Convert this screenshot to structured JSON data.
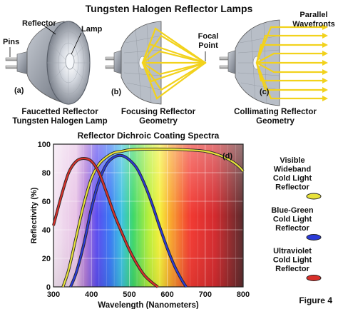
{
  "title": "Tungsten Halogen Reflector Lamps",
  "panels": {
    "a": {
      "letter": "(a)",
      "caption_line1": "Faucetted Reflector",
      "caption_line2": "Tungsten Halogen Lamp",
      "labels": {
        "reflector": "Reflector",
        "lamp": "Lamp",
        "pins": "Pins"
      }
    },
    "b": {
      "letter": "(b)",
      "caption_line1": "Focusing Reflector",
      "caption_line2": "Geometry",
      "focal_line1": "Focal",
      "focal_line2": "Point"
    },
    "c": {
      "letter": "(c)",
      "caption_line1": "Collimating Reflector",
      "caption_line2": "Geometry",
      "parallel_line1": "Parallel",
      "parallel_line2": "Wavefronts"
    }
  },
  "figure_label": "Figure 4",
  "colors": {
    "ray": "#f2d21c",
    "reflector_shell": "#9aa0aa",
    "wideband": "#e8e23a",
    "bluegreen": "#2a3ad8",
    "ultraviolet": "#d8302a"
  },
  "chart_data": {
    "type": "line",
    "title": "Reflector Dichroic Coating Spectra",
    "panel_letter": "(d)",
    "xlabel": "Wavelength (Nanometers)",
    "ylabel": "Reflectivity (%)",
    "xlim": [
      300,
      800
    ],
    "ylim": [
      0,
      100
    ],
    "xticks": [
      300,
      400,
      500,
      600,
      700,
      800
    ],
    "yticks": [
      0,
      20,
      40,
      60,
      80,
      100
    ],
    "grid": true,
    "legend_position": "right",
    "series": [
      {
        "name": "Visible Wideband Cold Light Reflector",
        "legend_lines": [
          "Visible",
          "Wideband",
          "Cold Light",
          "Reflector"
        ],
        "color": "#e8e23a",
        "x": [
          325,
          340,
          360,
          380,
          400,
          420,
          440,
          460,
          480,
          500,
          540,
          600,
          650,
          700,
          740,
          770,
          790,
          800
        ],
        "y": [
          0,
          12,
          35,
          58,
          76,
          86,
          91,
          94,
          95,
          96,
          96.5,
          96.5,
          96,
          95,
          92,
          88,
          84,
          81
        ]
      },
      {
        "name": "Blue-Green Cold Light Reflector",
        "legend_lines": [
          "Blue-Green",
          "Cold Light",
          "Reflector"
        ],
        "color": "#2a3ad8",
        "x": [
          345,
          360,
          380,
          400,
          420,
          440,
          460,
          480,
          500,
          520,
          540,
          560,
          580,
          600,
          620,
          640,
          650
        ],
        "y": [
          0,
          10,
          30,
          55,
          74,
          86,
          91,
          92,
          89,
          83,
          72,
          58,
          42,
          27,
          14,
          4,
          0
        ]
      },
      {
        "name": "Ultraviolet Cold Light Reflector",
        "legend_lines": [
          "Ultraviolet",
          "Cold Light",
          "Reflector"
        ],
        "color": "#d8302a",
        "x": [
          300,
          320,
          340,
          360,
          380,
          400,
          420,
          440,
          460,
          480,
          500,
          520,
          540,
          560,
          575
        ],
        "y": [
          43,
          63,
          80,
          88,
          90,
          88,
          80,
          66,
          51,
          38,
          26,
          16,
          8,
          3,
          0
        ]
      }
    ]
  }
}
